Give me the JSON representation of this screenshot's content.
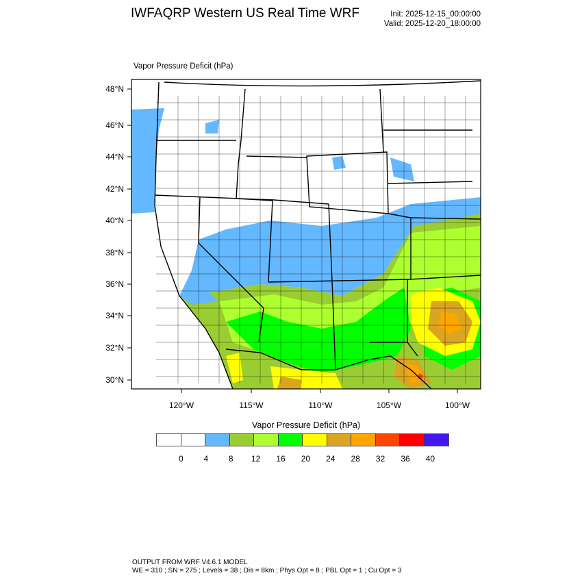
{
  "header": {
    "title": "IWFAQRP Western US Real Time WRF",
    "init": "Init: 2025-12-15_00:00:00",
    "valid": "Valid: 2025-12-20_18:00:00"
  },
  "field_label": "Vapor Pressure Deficit   (hPa)",
  "map": {
    "lat_labels": [
      "48°N",
      "46°N",
      "44°N",
      "42°N",
      "40°N",
      "38°N",
      "36°N",
      "34°N",
      "32°N",
      "30°N"
    ],
    "lon_labels": [
      "120°W",
      "115°W",
      "110°W",
      "105°W",
      "100°W"
    ]
  },
  "colorbar": {
    "title": "Vapor Pressure Deficit  (hPa)",
    "levels": [
      "0",
      "4",
      "8",
      "12",
      "16",
      "20",
      "24",
      "28",
      "32",
      "36",
      "40"
    ],
    "colors": [
      "#ffffff",
      "#ffffff",
      "#63b8ff",
      "#9acd32",
      "#adff2f",
      "#00ff00",
      "#ffff00",
      "#daa520",
      "#ffa500",
      "#ff4500",
      "#ff0000",
      "#4416f0"
    ]
  },
  "footer": {
    "line1": "OUTPUT FROM WRF V4.6.1 MODEL",
    "line2": "WE = 310 ; SN = 275 ; Levels = 38 ; Dis = 8km ; Phys Opt = 8 ; PBL Opt = 1 ; Cu Opt = 3"
  }
}
